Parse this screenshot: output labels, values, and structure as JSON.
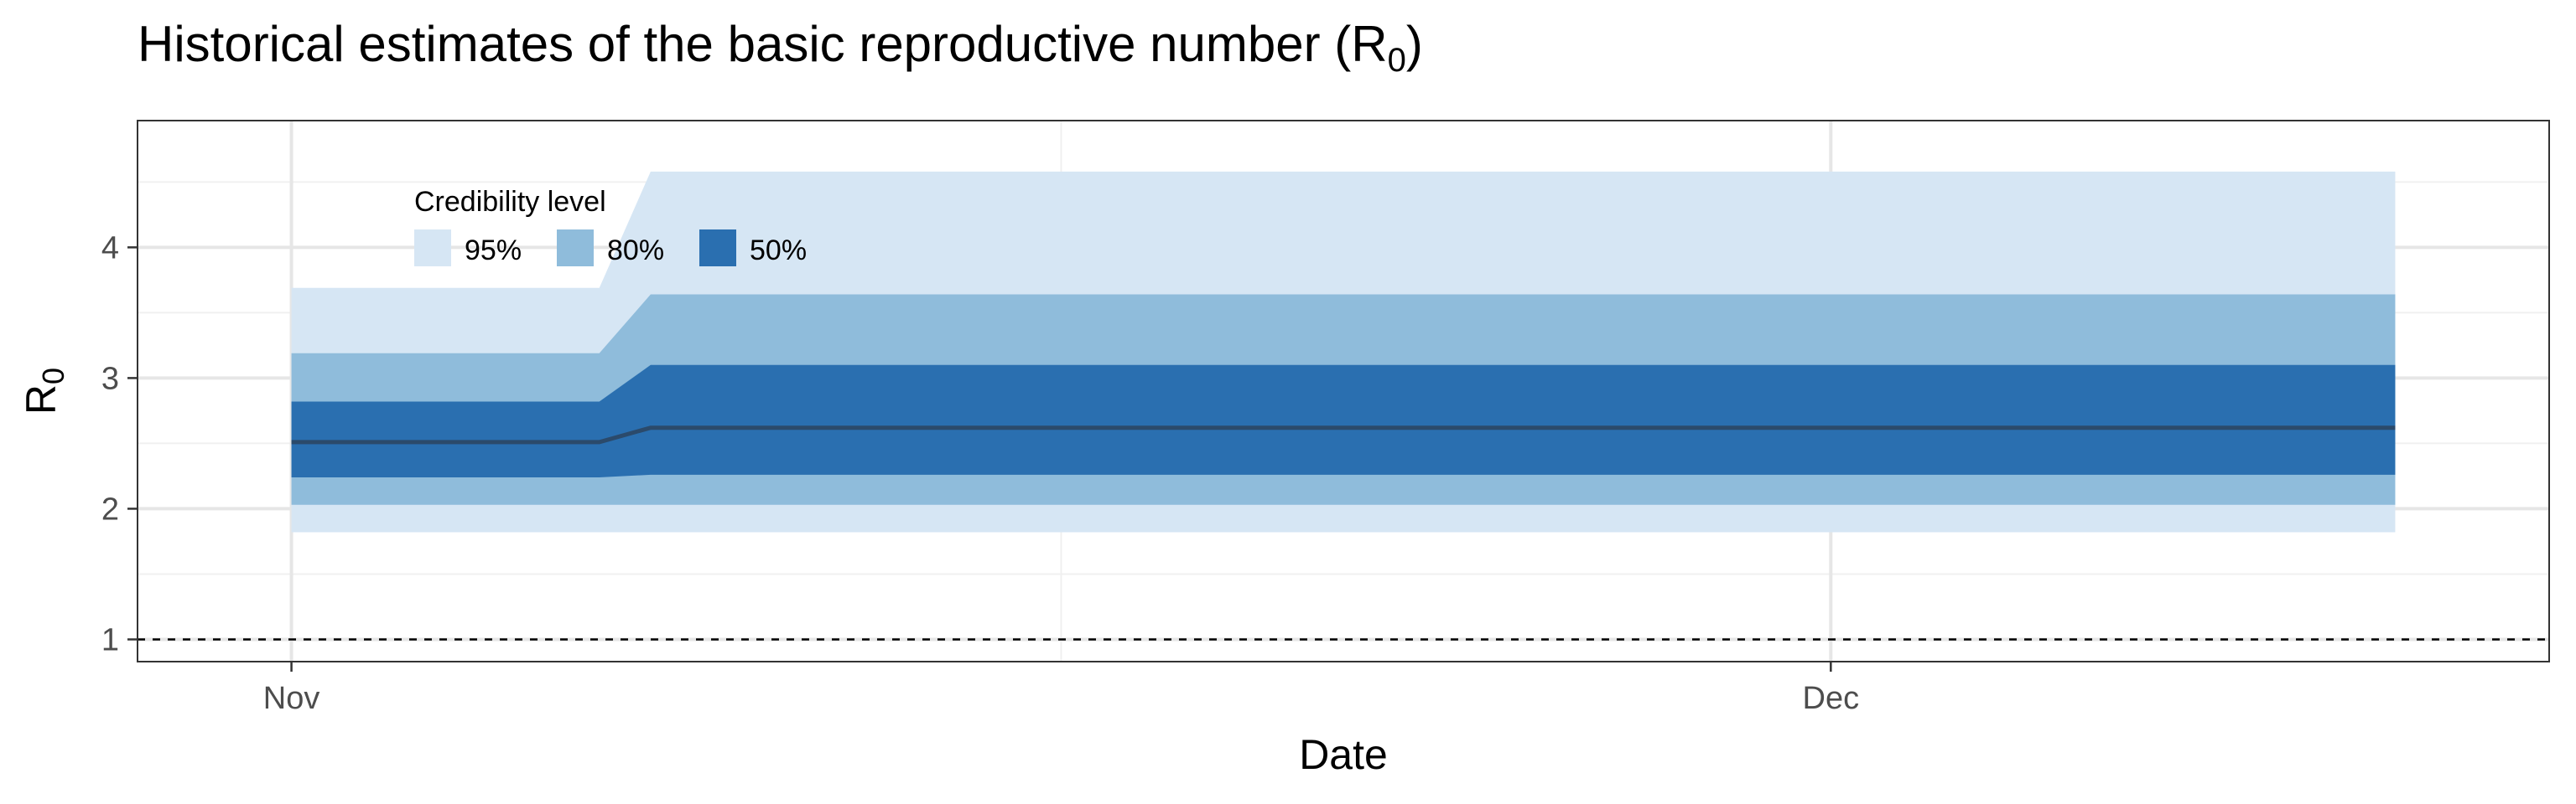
{
  "title": {
    "text": "Historical estimates of the basic reproductive number (R",
    "sub": "0",
    "close": ")"
  },
  "chart_data": {
    "type": "area",
    "title": "Historical estimates of the basic reproductive number (R0)",
    "xlabel": "Date",
    "ylabel": {
      "main": "R",
      "sub": "0"
    },
    "x_ticks": [
      {
        "date": "2020-11-01",
        "label": "Nov"
      },
      {
        "date": "2020-12-01",
        "label": "Dec"
      }
    ],
    "y_ticks": [
      1,
      2,
      3,
      4
    ],
    "ylim": [
      0.83,
      4.97
    ],
    "xlim": [
      "2020-10-29",
      "2020-12-15"
    ],
    "grid": true,
    "reference_line": {
      "y": 1,
      "style": "dashed"
    },
    "legend": {
      "title": "Credibility level",
      "position": "top-left",
      "items": [
        {
          "label": "95%",
          "color": "#d6e6f4"
        },
        {
          "label": "80%",
          "color": "#8fbcdb"
        },
        {
          "label": "50%",
          "color": "#2a6fb0"
        }
      ]
    },
    "x": [
      "2020-11-01",
      "2020-11-07",
      "2020-11-08",
      "2020-12-12"
    ],
    "median": [
      2.51,
      2.51,
      2.62,
      2.62
    ],
    "bands": [
      {
        "level": "95%",
        "color": "#d6e6f4",
        "lower": [
          1.82,
          1.82,
          1.82,
          1.82
        ],
        "upper": [
          3.69,
          3.69,
          4.58,
          4.58
        ]
      },
      {
        "level": "80%",
        "color": "#8fbcdb",
        "lower": [
          2.03,
          2.03,
          2.03,
          2.03
        ],
        "upper": [
          3.19,
          3.19,
          3.64,
          3.64
        ]
      },
      {
        "level": "50%",
        "color": "#2a6fb0",
        "lower": [
          2.24,
          2.24,
          2.26,
          2.26
        ],
        "upper": [
          2.82,
          2.82,
          3.1,
          3.1
        ]
      }
    ],
    "median_color": "#2b4a6b"
  }
}
